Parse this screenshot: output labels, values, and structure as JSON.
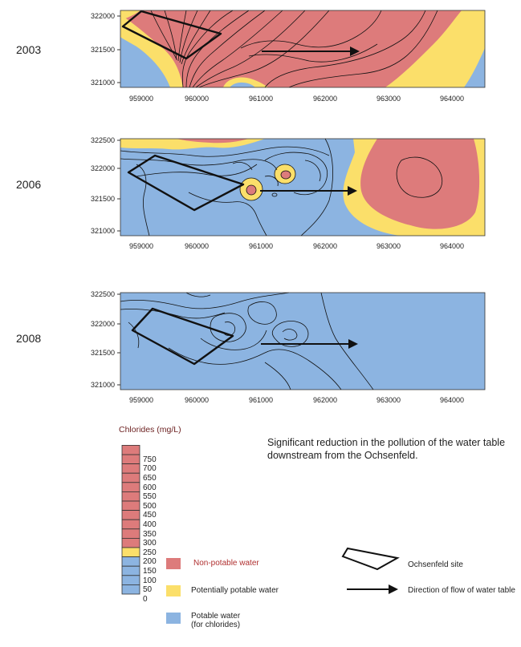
{
  "maps": [
    {
      "year": "2003",
      "y_ticks": [
        "322000",
        "321500",
        "321000"
      ],
      "x_ticks": [
        "959000",
        "960000",
        "961000",
        "962000",
        "963000",
        "964000"
      ]
    },
    {
      "year": "2006",
      "y_ticks": [
        "322500",
        "322000",
        "321500",
        "321000"
      ],
      "x_ticks": [
        "959000",
        "960000",
        "961000",
        "962000",
        "963000",
        "964000"
      ]
    },
    {
      "year": "2008",
      "y_ticks": [
        "322500",
        "322000",
        "321500",
        "321000"
      ],
      "x_ticks": [
        "959000",
        "960000",
        "961000",
        "962000",
        "963000",
        "964000"
      ]
    }
  ],
  "note": "Significant reduction in the pollution of the water table downstream from the Ochsenfeld.",
  "scale": {
    "title": "Chlorides (mg/L)",
    "ticks": [
      "750",
      "700",
      "650",
      "600",
      "550",
      "500",
      "450",
      "400",
      "350",
      "300",
      "250",
      "200",
      "150",
      "100",
      "50",
      "0"
    ]
  },
  "legend": {
    "non_potable": "Non-potable water",
    "potentially_potable": "Potentially potable water",
    "potable_line1": "Potable water",
    "potable_line2": "(for chlorides)",
    "site": "Ochsenfeld site",
    "flow": "Direction of flow of water table"
  },
  "colors": {
    "non_potable": "#dd7b7b",
    "potentially_potable": "#fbdf6a",
    "potable": "#8cb4e1"
  }
}
